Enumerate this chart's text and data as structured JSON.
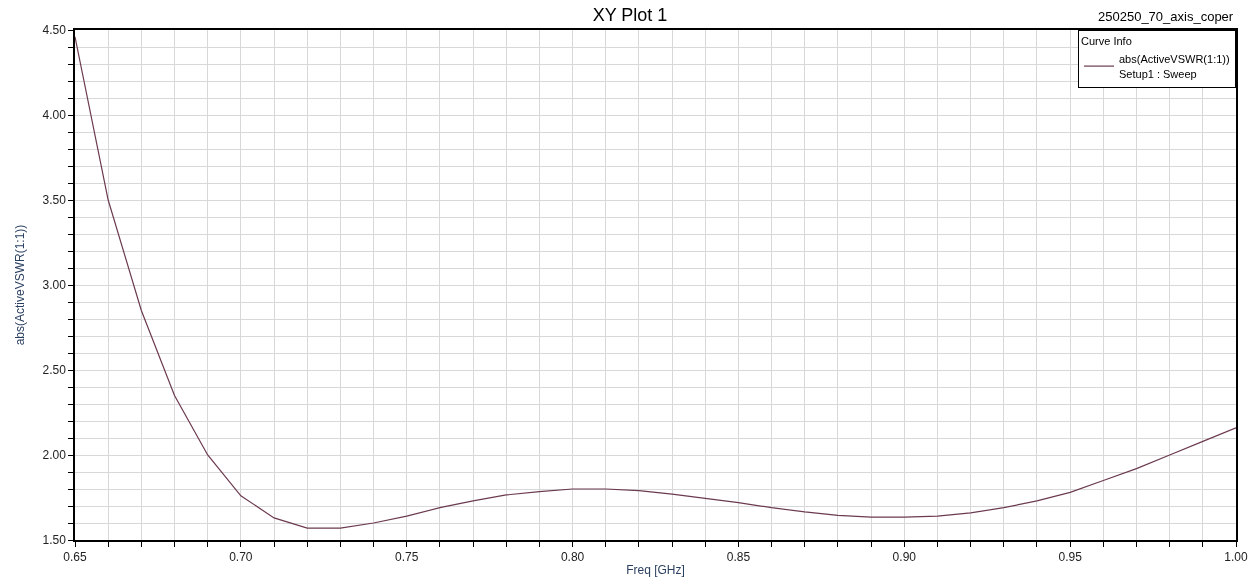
{
  "chart_data": {
    "type": "line",
    "title": "XY Plot 1",
    "xlabel": "Freq [GHz]",
    "ylabel": "abs(ActiveVSWR(1:1))",
    "legend_title": "Curve Info",
    "annotations": [
      "250250_70_axis_coper"
    ],
    "x": [
      0.65,
      0.66,
      0.67,
      0.68,
      0.69,
      0.7,
      0.71,
      0.72,
      0.73,
      0.74,
      0.75,
      0.76,
      0.77,
      0.78,
      0.79,
      0.8,
      0.81,
      0.82,
      0.83,
      0.84,
      0.85,
      0.86,
      0.87,
      0.88,
      0.89,
      0.9,
      0.91,
      0.92,
      0.93,
      0.94,
      0.95,
      0.96,
      0.97,
      0.98,
      0.99,
      1.0
    ],
    "series": [
      {
        "name": "abs(ActiveVSWR(1:1))\nSetup1 : Sweep",
        "color": "#6b3a50",
        "values": [
          4.46,
          3.5,
          2.85,
          2.35,
          2.0,
          1.76,
          1.63,
          1.57,
          1.57,
          1.6,
          1.64,
          1.69,
          1.73,
          1.765,
          1.785,
          1.8,
          1.8,
          1.79,
          1.77,
          1.745,
          1.72,
          1.69,
          1.665,
          1.645,
          1.635,
          1.635,
          1.64,
          1.66,
          1.69,
          1.73,
          1.78,
          1.85,
          1.92,
          2.0,
          2.08,
          2.16
        ]
      }
    ],
    "xlim": [
      0.65,
      1.0
    ],
    "xticks": [
      0.65,
      {
        "value": 0.66,
        "label": null
      },
      {
        "value": 0.67,
        "label": null
      },
      {
        "value": 0.68,
        "label": null
      },
      {
        "value": 0.69,
        "label": null
      },
      {
        "value": 0.7,
        "label": "0.70"
      },
      {
        "value": 0.71,
        "label": null
      },
      {
        "value": 0.72,
        "label": null
      },
      {
        "value": 0.73,
        "label": null
      },
      {
        "value": 0.74,
        "label": null
      },
      0.75,
      {
        "value": 0.76,
        "label": null
      },
      {
        "value": 0.77,
        "label": null
      },
      {
        "value": 0.78,
        "label": null
      },
      {
        "value": 0.79,
        "label": null
      },
      {
        "value": 0.8,
        "label": "0.80"
      },
      {
        "value": 0.81,
        "label": null
      },
      {
        "value": 0.82,
        "label": null
      },
      {
        "value": 0.83,
        "label": null
      },
      {
        "value": 0.84,
        "label": null
      },
      0.85,
      {
        "value": 0.86,
        "label": null
      },
      {
        "value": 0.87,
        "label": null
      },
      {
        "value": 0.88,
        "label": null
      },
      {
        "value": 0.89,
        "label": null
      },
      {
        "value": 0.9,
        "label": "0.90"
      },
      {
        "value": 0.91,
        "label": null
      },
      {
        "value": 0.92,
        "label": null
      },
      {
        "value": 0.93,
        "label": null
      },
      {
        "value": 0.94,
        "label": null
      },
      0.95,
      {
        "value": 0.96,
        "label": null
      },
      {
        "value": 0.97,
        "label": null
      },
      {
        "value": 0.98,
        "label": null
      },
      {
        "value": 0.99,
        "label": null
      },
      {
        "value": 1.0,
        "label": "1.00"
      }
    ],
    "ylim": [
      1.5,
      4.5
    ],
    "yticks": [
      {
        "value": 1.5,
        "label": "1.50"
      },
      {
        "value": 1.6,
        "label": null
      },
      {
        "value": 1.7,
        "label": null
      },
      {
        "value": 1.8,
        "label": null
      },
      {
        "value": 1.9,
        "label": null
      },
      {
        "value": 2.0,
        "label": "2.00"
      },
      {
        "value": 2.1,
        "label": null
      },
      {
        "value": 2.2,
        "label": null
      },
      {
        "value": 2.3,
        "label": null
      },
      {
        "value": 2.4,
        "label": null
      },
      {
        "value": 2.5,
        "label": "2.50"
      },
      {
        "value": 2.6,
        "label": null
      },
      {
        "value": 2.7,
        "label": null
      },
      {
        "value": 2.8,
        "label": null
      },
      {
        "value": 2.9,
        "label": null
      },
      {
        "value": 3.0,
        "label": "3.00"
      },
      {
        "value": 3.1,
        "label": null
      },
      {
        "value": 3.2,
        "label": null
      },
      {
        "value": 3.3,
        "label": null
      },
      {
        "value": 3.4,
        "label": null
      },
      {
        "value": 3.5,
        "label": "3.50"
      },
      {
        "value": 3.6,
        "label": null
      },
      {
        "value": 3.7,
        "label": null
      },
      {
        "value": 3.8,
        "label": null
      },
      {
        "value": 3.9,
        "label": null
      },
      {
        "value": 4.0,
        "label": "4.00"
      },
      {
        "value": 4.1,
        "label": null
      },
      {
        "value": 4.2,
        "label": null
      },
      {
        "value": 4.3,
        "label": null
      },
      {
        "value": 4.4,
        "label": null
      },
      {
        "value": 4.5,
        "label": "4.50"
      }
    ],
    "grid": true,
    "legend": "top right",
    "marker": "none",
    "line_style": "solid"
  }
}
